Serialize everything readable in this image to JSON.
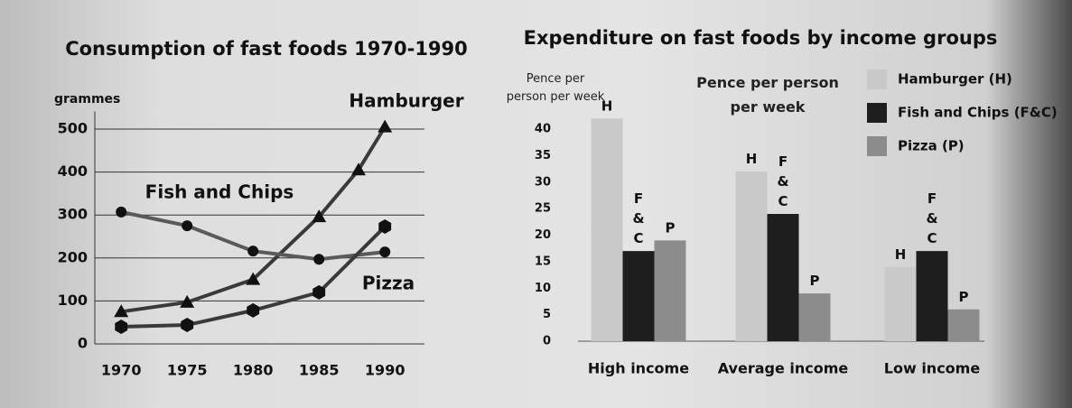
{
  "chart_data": [
    {
      "type": "line",
      "title": "Consumption of fast foods 1970-1990",
      "y_label": "grammes",
      "xlim": [
        1968,
        1993
      ],
      "xticks": [
        1970,
        1975,
        1980,
        1985,
        1990
      ],
      "ylim": [
        0,
        520
      ],
      "yticks": [
        0,
        100,
        200,
        300,
        400,
        500
      ],
      "grid": true,
      "series": [
        {
          "name": "Hamburger",
          "color": "#3a3a3a",
          "marker": "triangle",
          "x": [
            1970,
            1975,
            1980,
            1985,
            1988,
            1990
          ],
          "values": [
            75,
            97,
            150,
            296,
            405,
            505
          ]
        },
        {
          "name": "Fish and Chips",
          "color": "#5a5a5a",
          "marker": "circle",
          "x": [
            1970,
            1975,
            1980,
            1985,
            1990
          ],
          "values": [
            307,
            275,
            216,
            197,
            214
          ]
        },
        {
          "name": "Pizza",
          "color": "#3a3a3a",
          "marker": "hexagon",
          "x": [
            1970,
            1975,
            1980,
            1985,
            1990
          ],
          "values": [
            40,
            44,
            78,
            120,
            273
          ]
        }
      ]
    },
    {
      "type": "bar",
      "title": "Expenditure on fast foods by income groups",
      "y_label": "Pence per person per week",
      "annotation": "Pence per person per week",
      "categories": [
        "High income",
        "Average income",
        "Low income"
      ],
      "ylim": [
        0,
        44
      ],
      "yticks": [
        0,
        5,
        10,
        15,
        20,
        25,
        30,
        35,
        40
      ],
      "grid": false,
      "series": [
        {
          "name": "Hamburger (H)",
          "bar_label": "H",
          "color": "#c9c9c9",
          "values": [
            42,
            32,
            14
          ]
        },
        {
          "name": "Fish and Chips (F&C)",
          "bar_label": "F&C",
          "color": "#1e1e1e",
          "values": [
            17,
            24,
            17
          ]
        },
        {
          "name": "Pizza (P)",
          "bar_label": "P",
          "color": "#8c8c8c",
          "values": [
            19,
            9,
            6
          ]
        }
      ]
    }
  ]
}
